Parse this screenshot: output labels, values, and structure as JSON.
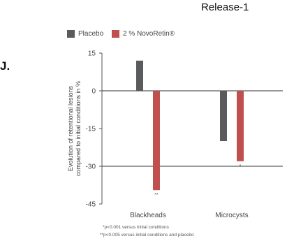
{
  "header": {
    "release_label": "Release-1",
    "panel_letter": "J."
  },
  "colors": {
    "placebo": "#5a5b5d",
    "novoretin": "#c0504d",
    "axis": "#555555",
    "gridline": "#333333"
  },
  "legend": {
    "items": [
      {
        "label": "Placebo",
        "color": "#5a5b5d"
      },
      {
        "label": "2 % NovoRetin®",
        "color": "#c0504d"
      }
    ]
  },
  "chart_data": {
    "type": "bar",
    "title": "",
    "ylabel": "Evolution of retentional lesions compared to initial conditions in %",
    "xlabel": "",
    "categories": [
      "Blackheads",
      "Microcysts"
    ],
    "ylim": [
      -45,
      15
    ],
    "yticks": [
      15,
      0,
      -15,
      -30,
      -45
    ],
    "horizontal_lines": [
      0,
      -30
    ],
    "grid": false,
    "legend_position": "top-left",
    "series": [
      {
        "name": "Placebo",
        "color": "#5a5b5d",
        "values": [
          12,
          -20
        ],
        "marks": [
          "",
          ""
        ]
      },
      {
        "name": "2 % NovoRetin®",
        "color": "#c0504d",
        "values": [
          -39.5,
          -28
        ],
        "marks": [
          "**",
          "*"
        ]
      }
    ]
  },
  "footnotes": {
    "line1": "*p<0.001 versus initial conditions",
    "line2": "**p<0.005 versus initial conditions and placebo"
  }
}
